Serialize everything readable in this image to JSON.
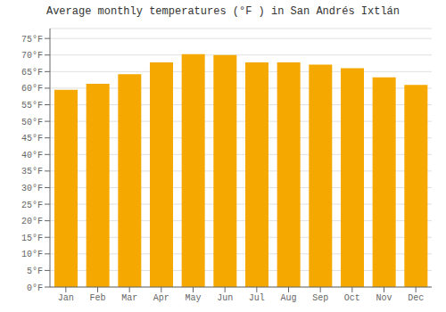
{
  "chart_data": {
    "type": "bar",
    "title": "Average monthly temperatures (°F ) in San Andrés Ixtlán",
    "categories": [
      "Jan",
      "Feb",
      "Mar",
      "Apr",
      "May",
      "Jun",
      "Jul",
      "Aug",
      "Sep",
      "Oct",
      "Nov",
      "Dec"
    ],
    "values": [
      59.5,
      61.3,
      64.2,
      67.8,
      70.3,
      70.0,
      67.8,
      67.8,
      67.1,
      66.0,
      63.3,
      61.0
    ],
    "color": "#F5A800",
    "ylim": [
      0,
      78
    ],
    "yticks": [
      {
        "value": 0,
        "label": "0°F"
      },
      {
        "value": 5,
        "label": "5°F"
      },
      {
        "value": 10,
        "label": "10°F"
      },
      {
        "value": 15,
        "label": "15°F"
      },
      {
        "value": 20,
        "label": "20°F"
      },
      {
        "value": 25,
        "label": "25°F"
      },
      {
        "value": 30,
        "label": "30°F"
      },
      {
        "value": 35,
        "label": "35°F"
      },
      {
        "value": 40,
        "label": "40°F"
      },
      {
        "value": 45,
        "label": "45°F"
      },
      {
        "value": 50,
        "label": "50°F"
      },
      {
        "value": 55,
        "label": "55°F"
      },
      {
        "value": 60,
        "label": "60°F"
      },
      {
        "value": 65,
        "label": "65°F"
      },
      {
        "value": 70,
        "label": "70°F"
      },
      {
        "value": 75,
        "label": "75°F"
      }
    ],
    "grid": true
  }
}
